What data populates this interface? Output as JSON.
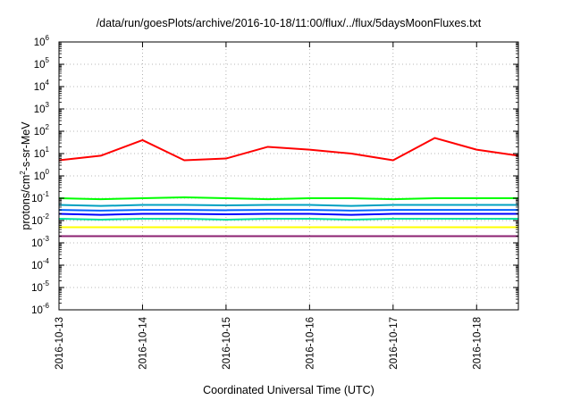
{
  "chart_data": {
    "type": "line",
    "title": "/data/run/goesPlots/archive/2016-10-18/11:00/flux/../flux/5daysMoonFluxes.txt",
    "xlabel": "Coordinated Universal Time (UTC)",
    "ylabel": {
      "pre": "protons/cm",
      "sup": "2",
      "post": "-s-sr-MeV"
    },
    "y_scale": "log",
    "ylim": [
      1e-06,
      1000000.0
    ],
    "xlim": [
      "2016-10-13T00:00",
      "2016-10-18T12:00"
    ],
    "grid": true,
    "x_ticks": [
      "2016-10-13",
      "2016-10-14",
      "2016-10-15",
      "2016-10-16",
      "2016-10-17",
      "2016-10-18"
    ],
    "y_ticks": [
      {
        "base": "10",
        "exp": "-6",
        "value": 1e-06
      },
      {
        "base": "10",
        "exp": "-5",
        "value": 1e-05
      },
      {
        "base": "10",
        "exp": "-4",
        "value": 0.0001
      },
      {
        "base": "10",
        "exp": "-3",
        "value": 0.001
      },
      {
        "base": "10",
        "exp": "-2",
        "value": 0.01
      },
      {
        "base": "10",
        "exp": "-1",
        "value": 0.1
      },
      {
        "base": "10",
        "exp": "0",
        "value": 1
      },
      {
        "base": "10",
        "exp": "1",
        "value": 10
      },
      {
        "base": "10",
        "exp": "2",
        "value": 100
      },
      {
        "base": "10",
        "exp": "3",
        "value": 1000
      },
      {
        "base": "10",
        "exp": "4",
        "value": 10000
      },
      {
        "base": "10",
        "exp": "5",
        "value": 100000
      },
      {
        "base": "10",
        "exp": "6",
        "value": 1000000
      }
    ],
    "x": [
      "2016-10-13T00:00",
      "2016-10-13T12:00",
      "2016-10-14T00:00",
      "2016-10-14T12:00",
      "2016-10-15T00:00",
      "2016-10-15T12:00",
      "2016-10-16T00:00",
      "2016-10-16T12:00",
      "2016-10-17T00:00",
      "2016-10-17T12:00",
      "2016-10-18T00:00",
      "2016-10-18T12:00"
    ],
    "series": [
      {
        "color": "#ff0000",
        "values": [
          5,
          8,
          40,
          5,
          6,
          20,
          15,
          10,
          5,
          50,
          15,
          8
        ]
      },
      {
        "color": "#00ff00",
        "values": [
          0.1,
          0.09,
          0.1,
          0.11,
          0.1,
          0.09,
          0.1,
          0.1,
          0.09,
          0.1,
          0.1,
          0.1
        ]
      },
      {
        "color": "#00a0c0",
        "values": [
          0.05,
          0.045,
          0.05,
          0.05,
          0.048,
          0.05,
          0.05,
          0.045,
          0.05,
          0.05,
          0.05,
          0.05
        ]
      },
      {
        "color": "#0060ff",
        "values": [
          0.03,
          0.028,
          0.03,
          0.03,
          0.029,
          0.03,
          0.03,
          0.028,
          0.03,
          0.03,
          0.03,
          0.03
        ]
      },
      {
        "color": "#0000ff",
        "values": [
          0.02,
          0.018,
          0.02,
          0.02,
          0.019,
          0.02,
          0.02,
          0.018,
          0.02,
          0.02,
          0.02,
          0.02
        ]
      },
      {
        "color": "#00e0a0",
        "values": [
          0.012,
          0.011,
          0.012,
          0.012,
          0.011,
          0.012,
          0.012,
          0.011,
          0.012,
          0.012,
          0.012,
          0.012
        ]
      },
      {
        "color": "#ffff00",
        "values": [
          0.005,
          0.005,
          0.005,
          0.005,
          0.005,
          0.005,
          0.005,
          0.005,
          0.005,
          0.005,
          0.005,
          0.005
        ]
      },
      {
        "color": "#8b2070",
        "values": [
          0.002,
          0.002,
          0.002,
          0.002,
          0.002,
          0.002,
          0.002,
          0.002,
          0.002,
          0.002,
          0.002,
          0.002
        ]
      }
    ]
  }
}
